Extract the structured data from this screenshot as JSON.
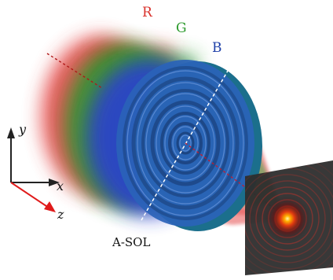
{
  "beam_labels": {
    "red": "R",
    "green": "G",
    "blue": "B"
  },
  "axes": {
    "x_label": "x",
    "y_label": "y",
    "z_label": "z"
  },
  "element_label": "A-SOL",
  "colors": {
    "red_beam": "#e23a3a",
    "green_beam": "#2e9a2e",
    "blue_beam": "#2b3fd0",
    "lens_face": "#2a63b8",
    "lens_rim": "#1b6f8c",
    "label_red": "#d9312b",
    "label_green": "#2c9a2c",
    "label_blue": "#1d3fa8",
    "z_axis": "#e01b1b",
    "screen": "#2d2d2d"
  },
  "icons": {
    "axis_arrows": "triad-arrows"
  }
}
